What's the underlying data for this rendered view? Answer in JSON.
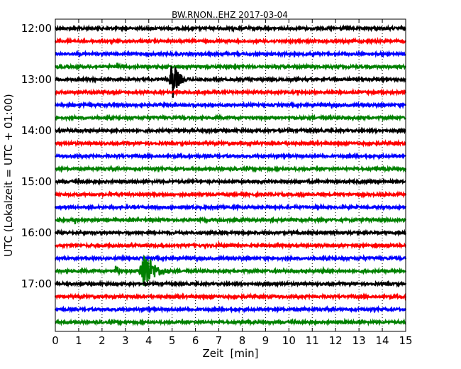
{
  "chart_data": {
    "type": "line",
    "title": "BW.RNON..EHZ 2017-03-04",
    "xlabel": "Zeit  [min]",
    "ylabel": "UTC (Lokalzeit = UTC + 01:00)",
    "xlim": [
      0,
      15
    ],
    "x_ticks": [
      "0",
      "1",
      "2",
      "3",
      "4",
      "5",
      "6",
      "7",
      "8",
      "9",
      "10",
      "11",
      "12",
      "13",
      "14",
      "15"
    ],
    "y_tick_labels": [
      "12:00",
      "13:00",
      "14:00",
      "15:00",
      "16:00",
      "17:00"
    ],
    "start_time": "12:00",
    "trace_interval_min": 15,
    "trace_count": 24,
    "vertical_grid": "dotted",
    "trace_colors": [
      "#000000",
      "#ff0000",
      "#0000ff",
      "#008000"
    ],
    "events": [
      {
        "trace_start": "12:45",
        "minute": 2.65,
        "amplitude": 0.35,
        "width": 0.15
      },
      {
        "trace_start": "13:00",
        "minute": 5.0,
        "amplitude": 1.7,
        "width": 0.55
      },
      {
        "trace_start": "13:15",
        "minute": 8.5,
        "amplitude": 0.18,
        "width": 0.3
      },
      {
        "trace_start": "13:30",
        "minute": 4.2,
        "amplitude": 0.1,
        "width": 0.4
      },
      {
        "trace_start": "14:00",
        "minute": 6.5,
        "amplitude": 0.2,
        "width": 0.5
      },
      {
        "trace_start": "14:15",
        "minute": 8.3,
        "amplitude": 0.2,
        "width": 0.4
      },
      {
        "trace_start": "14:45",
        "minute": 13.7,
        "amplitude": 0.2,
        "width": 0.15
      },
      {
        "trace_start": "15:45",
        "minute": 0.85,
        "amplitude": 0.4,
        "width": 0.15
      },
      {
        "trace_start": "16:15",
        "minute": 7.0,
        "amplitude": 0.3,
        "width": 0.15
      },
      {
        "trace_start": "16:45",
        "minute": 3.8,
        "amplitude": 1.7,
        "width": 0.95
      },
      {
        "trace_start": "16:45",
        "minute": 2.6,
        "amplitude": 0.6,
        "width": 0.3
      },
      {
        "trace_start": "16:45",
        "minute": 11.5,
        "amplitude": 0.2,
        "width": 1.0
      },
      {
        "trace_start": "17:15",
        "minute": 5.8,
        "amplitude": 0.18,
        "width": 0.2
      },
      {
        "trace_start": "17:45",
        "minute": 12.4,
        "amplitude": 0.15,
        "width": 0.2
      },
      {
        "trace_start": "12:30",
        "minute": 14.0,
        "amplitude": 0.2,
        "width": 0.2
      }
    ]
  }
}
